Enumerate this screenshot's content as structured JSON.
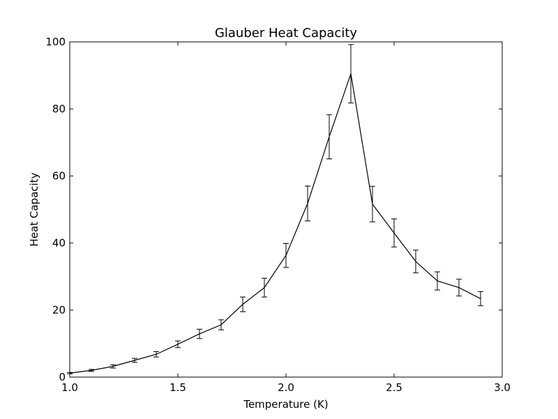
{
  "chart_data": {
    "type": "line",
    "title": "Glauber Heat Capacity",
    "xlabel": "Temperature (K)",
    "ylabel": "Heat Capacity",
    "xlim": [
      1.0,
      3.0
    ],
    "ylim": [
      0,
      100
    ],
    "xticks": [
      "1.0",
      "1.5",
      "2.0",
      "2.5",
      "3.0"
    ],
    "yticks": [
      "0",
      "20",
      "40",
      "60",
      "80",
      "100"
    ],
    "grid": false,
    "series_color": "#000000",
    "series": [
      {
        "x": [
          1.0,
          1.1,
          1.2,
          1.3,
          1.4,
          1.5,
          1.6,
          1.7,
          1.8,
          1.9,
          2.0,
          2.1,
          2.2,
          2.3,
          2.4,
          2.5,
          2.6,
          2.7,
          2.8,
          2.9
        ],
        "y": [
          1.2,
          2.0,
          3.2,
          5.0,
          6.8,
          9.8,
          12.9,
          15.6,
          21.7,
          26.7,
          36.3,
          51.8,
          71.7,
          90.5,
          51.6,
          43.0,
          34.5,
          28.7,
          26.7,
          23.4
        ],
        "err": [
          0.2,
          0.3,
          0.5,
          0.6,
          0.8,
          1.0,
          1.4,
          1.5,
          2.2,
          2.8,
          3.6,
          5.2,
          6.6,
          8.7,
          5.3,
          4.2,
          3.4,
          2.7,
          2.5,
          2.1
        ]
      }
    ]
  }
}
